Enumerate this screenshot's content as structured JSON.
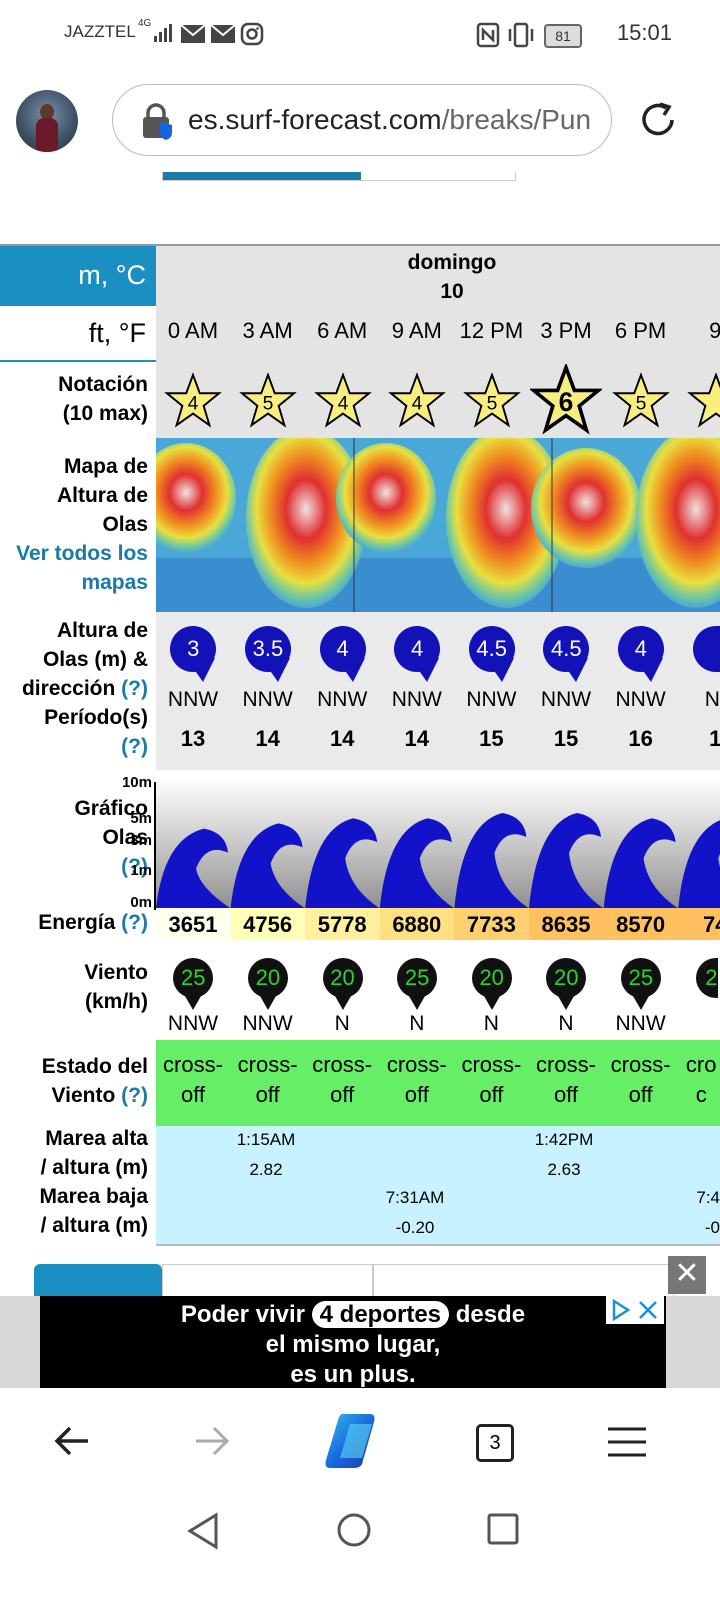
{
  "status_bar": {
    "carrier": "JAZZTEL",
    "network": "4G",
    "battery": "81",
    "time": "15:01"
  },
  "browser": {
    "url_domain": "es.surf-forecast.com",
    "url_path": "/breaks/Pun",
    "tab_count": "3"
  },
  "forecast": {
    "unit_metric": "m, °C",
    "unit_imperial": "ft, °F",
    "day_name": "domingo",
    "day_number": "10",
    "hours": [
      "0 AM",
      "3 AM",
      "6 AM",
      "9 AM",
      "12 PM",
      "3 PM",
      "6 PM",
      "9"
    ],
    "labels": {
      "rating": [
        "Notación",
        "(10 max)"
      ],
      "wave_map": [
        "Mapa de",
        "Altura de",
        "Olas"
      ],
      "wave_map_link": [
        "Ver todos los",
        "mapas"
      ],
      "wave_height": [
        "Altura de",
        "Olas (m) &",
        "dirección"
      ],
      "period": [
        "Período(s)"
      ],
      "wave_graph": [
        "Gráfico",
        "Olas"
      ],
      "energy": "Energía",
      "wind": [
        "Viento",
        "(km/h)"
      ],
      "wind_state": [
        "Estado del",
        "Viento"
      ],
      "high_tide": [
        "Marea alta",
        "/ altura (m)"
      ],
      "low_tide": [
        "Marea baja",
        "/ altura (m)"
      ],
      "help": "(?)"
    },
    "graph_axis": [
      "10m",
      "5m",
      "3m",
      "1m",
      "0m"
    ],
    "ratings": [
      "4",
      "5",
      "4",
      "4",
      "5",
      "6",
      "5",
      ""
    ],
    "wave_heights": [
      "3",
      "3.5",
      "4",
      "4",
      "4.5",
      "4.5",
      "4",
      ""
    ],
    "wave_dirs": [
      "NNW",
      "NNW",
      "NNW",
      "NNW",
      "NNW",
      "NNW",
      "NNW",
      "NI"
    ],
    "periods": [
      "13",
      "14",
      "14",
      "14",
      "15",
      "15",
      "16",
      "1"
    ],
    "wave_fill": [
      0.38,
      0.42,
      0.46,
      0.46,
      0.5,
      0.5,
      0.46,
      0.46
    ],
    "energy": [
      "3651",
      "4756",
      "5778",
      "6880",
      "7733",
      "8635",
      "8570",
      "74"
    ],
    "winds": [
      "25",
      "20",
      "20",
      "25",
      "20",
      "20",
      "25",
      "2"
    ],
    "wind_dirs": [
      "NNW",
      "NNW",
      "N",
      "N",
      "N",
      "N",
      "NNW",
      ""
    ],
    "wind_state_top": [
      "cross-",
      "cross-",
      "cross-",
      "cross-",
      "cross-",
      "cross-",
      "cross-",
      "cro"
    ],
    "wind_state_bottom": [
      "off",
      "off",
      "off",
      "off",
      "off",
      "off",
      "off",
      "c"
    ],
    "high_tides": [
      {
        "time": "1:15AM",
        "height": "2.82"
      },
      {
        "time": "1:42PM",
        "height": "2.63"
      }
    ],
    "low_tides": [
      {
        "time": "7:31AM",
        "height": "-0.20"
      },
      {
        "time": "7:4",
        "height": "-0"
      }
    ]
  },
  "ad": {
    "line1_pre": "Poder vivir",
    "line1_highlight": "4 deportes",
    "line1_post": "desde",
    "line2": "el mismo lugar,",
    "line3": "es un plus."
  },
  "colors": {
    "accent_blue": "#1a8fc2",
    "wave_blue": "#1212b8",
    "wind_green": "#29d429",
    "state_green": "#66ee66",
    "tide_bg": "#c8f2ff"
  }
}
